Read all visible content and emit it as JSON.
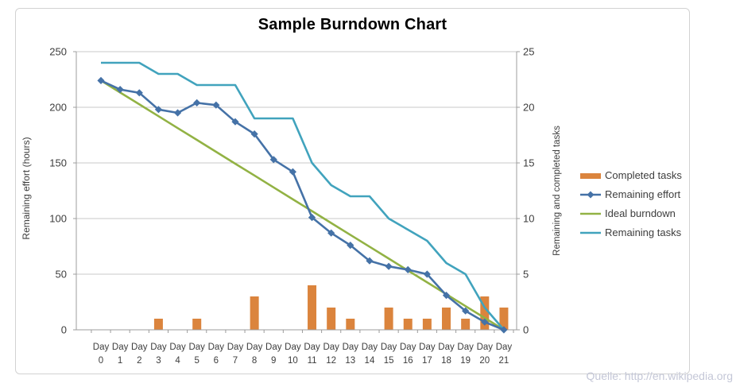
{
  "footer": {
    "source": "Quelle: http://en.wikipedia.org"
  },
  "legend": {
    "position": "right",
    "items": [
      {
        "label": "Completed tasks",
        "marker": "bar",
        "color": "#db843d"
      },
      {
        "label": "Remaining effort",
        "marker": "line-diamond",
        "color": "#4572a7"
      },
      {
        "label": "Ideal burndown",
        "marker": "line",
        "color": "#92b244"
      },
      {
        "label": "Remaining tasks",
        "marker": "line",
        "color": "#41a3bd"
      }
    ]
  },
  "chart_data": {
    "type": "combo",
    "title": "Sample Burndown Chart",
    "grid": true,
    "legend_position": "right",
    "x_categories": [
      "Day 0",
      "Day 1",
      "Day 2",
      "Day 3",
      "Day 4",
      "Day 5",
      "Day 6",
      "Day 7",
      "Day 8",
      "Day 9",
      "Day 10",
      "Day 11",
      "Day 12",
      "Day 13",
      "Day 14",
      "Day 15",
      "Day 16",
      "Day 17",
      "Day 18",
      "Day 19",
      "Day 20",
      "Day 21"
    ],
    "left_axis": {
      "label": "Remaining effort (hours)",
      "range": [
        0,
        250
      ],
      "ticks": [
        0,
        50,
        100,
        150,
        200,
        250
      ]
    },
    "right_axis": {
      "label": "Remaining and  completed tasks",
      "range": [
        0,
        25
      ],
      "ticks": [
        0,
        5,
        10,
        15,
        20,
        25
      ]
    },
    "series": [
      {
        "name": "Completed tasks",
        "type": "bar",
        "axis": "right",
        "color": "#db843d",
        "values": [
          0,
          0,
          0,
          1,
          0,
          1,
          0,
          0,
          3,
          0,
          0,
          4,
          2,
          1,
          0,
          2,
          1,
          1,
          2,
          1,
          3,
          2
        ]
      },
      {
        "name": "Remaining effort",
        "type": "line",
        "marker": "diamond",
        "axis": "left",
        "color": "#4572a7",
        "values": [
          224,
          216,
          213,
          198,
          195,
          204,
          202,
          187,
          176,
          153,
          142,
          101,
          87,
          76,
          62,
          57,
          54,
          50,
          31,
          17,
          7,
          0
        ]
      },
      {
        "name": "Ideal burndown",
        "type": "line",
        "axis": "left",
        "color": "#92b244",
        "values": [
          224,
          213.3,
          202.7,
          192,
          181.3,
          170.7,
          160,
          149.3,
          138.7,
          128,
          117.3,
          106.7,
          96,
          85.3,
          74.7,
          64,
          53.3,
          42.7,
          32,
          21.3,
          10.7,
          0
        ]
      },
      {
        "name": "Remaining tasks",
        "type": "line",
        "axis": "right",
        "color": "#41a3bd",
        "values": [
          24,
          24,
          24,
          23,
          23,
          22,
          22,
          22,
          19,
          19,
          19,
          15,
          13,
          12,
          12,
          10,
          9,
          8,
          6,
          5,
          2,
          0
        ]
      }
    ],
    "colors": {
      "grid": "#c8c8c8",
      "axis": "#9c9c9c",
      "tick_text": "#3d3d3d",
      "title_text": "#000000",
      "source_text": "#c4c7d7"
    }
  }
}
